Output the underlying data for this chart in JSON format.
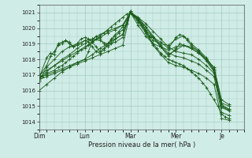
{
  "bg_color": "#d0ece6",
  "grid_color": "#a0ccc0",
  "line_color": "#1a5c1a",
  "xlabel": "Pression niveau de la mer( hPa )",
  "ylim": [
    1013.5,
    1021.5
  ],
  "yticks": [
    1014,
    1015,
    1016,
    1017,
    1018,
    1019,
    1020,
    1021
  ],
  "xlim": [
    0,
    216
  ],
  "day_ticks": [
    0,
    48,
    96,
    144,
    192
  ],
  "day_labels": [
    "Dim",
    "Lun",
    "Mar",
    "Mer",
    "Je"
  ],
  "lines": [
    [
      0,
      1016.8,
      4,
      1016.9,
      8,
      1017.1,
      16,
      1017.3,
      20,
      1017.5,
      24,
      1017.6,
      28,
      1017.8,
      32,
      1018.0,
      36,
      1018.2,
      40,
      1018.4,
      44,
      1018.6,
      48,
      1018.7,
      52,
      1018.9,
      56,
      1019.1,
      60,
      1019.3,
      64,
      1019.5,
      68,
      1019.7,
      72,
      1019.9,
      76,
      1020.1,
      80,
      1020.3,
      84,
      1020.5,
      88,
      1020.7,
      92,
      1020.9,
      96,
      1021.0,
      100,
      1020.8,
      104,
      1020.5,
      108,
      1020.2,
      112,
      1019.8,
      116,
      1019.4,
      120,
      1019.0,
      124,
      1018.7,
      128,
      1018.4,
      132,
      1018.2,
      136,
      1018.0,
      140,
      1017.9,
      144,
      1017.8,
      148,
      1017.7,
      152,
      1017.6,
      156,
      1017.4,
      160,
      1017.2,
      164,
      1017.0,
      168,
      1016.8,
      172,
      1016.5,
      176,
      1016.2,
      180,
      1015.8,
      184,
      1015.4,
      188,
      1015.0,
      192,
      1014.5,
      196,
      1014.3,
      200,
      1014.2
    ],
    [
      0,
      1016.7,
      8,
      1016.9,
      16,
      1017.1,
      24,
      1017.3,
      32,
      1017.5,
      40,
      1017.7,
      48,
      1017.9,
      56,
      1018.1,
      64,
      1018.3,
      72,
      1018.5,
      80,
      1018.7,
      88,
      1018.9,
      96,
      1021.0,
      104,
      1020.4,
      112,
      1019.7,
      120,
      1018.9,
      128,
      1018.3,
      136,
      1017.8,
      144,
      1017.6,
      152,
      1017.5,
      160,
      1017.3,
      168,
      1017.1,
      176,
      1016.8,
      184,
      1016.4,
      192,
      1014.2,
      200,
      1014.1
    ],
    [
      0,
      1016.8,
      8,
      1017.2,
      16,
      1017.6,
      24,
      1018.0,
      32,
      1018.3,
      40,
      1018.7,
      48,
      1019.0,
      56,
      1019.3,
      64,
      1019.6,
      72,
      1019.8,
      80,
      1020.0,
      88,
      1020.2,
      96,
      1021.0,
      104,
      1020.6,
      112,
      1020.1,
      120,
      1019.5,
      128,
      1018.9,
      136,
      1018.4,
      144,
      1018.2,
      152,
      1018.1,
      160,
      1017.9,
      168,
      1017.7,
      176,
      1017.3,
      184,
      1016.9,
      192,
      1014.6,
      200,
      1014.4
    ],
    [
      0,
      1016.6,
      8,
      1017.5,
      16,
      1018.0,
      24,
      1018.5,
      32,
      1018.8,
      40,
      1019.0,
      48,
      1019.2,
      56,
      1019.3,
      64,
      1019.2,
      72,
      1019.0,
      80,
      1019.1,
      88,
      1019.4,
      96,
      1021.0,
      104,
      1020.7,
      112,
      1020.1,
      120,
      1019.4,
      128,
      1018.8,
      136,
      1018.3,
      144,
      1018.6,
      152,
      1018.9,
      160,
      1018.8,
      168,
      1018.5,
      176,
      1018.0,
      184,
      1017.3,
      192,
      1015.1,
      200,
      1014.8
    ],
    [
      0,
      1017.0,
      8,
      1017.3,
      16,
      1017.6,
      24,
      1017.9,
      32,
      1018.2,
      40,
      1018.5,
      48,
      1018.8,
      56,
      1019.1,
      64,
      1019.4,
      72,
      1019.7,
      80,
      1019.9,
      88,
      1020.2,
      96,
      1021.0,
      104,
      1020.7,
      112,
      1020.3,
      120,
      1019.8,
      128,
      1019.3,
      136,
      1018.8,
      144,
      1018.5,
      152,
      1018.4,
      160,
      1018.3,
      168,
      1018.0,
      176,
      1017.6,
      184,
      1017.1,
      192,
      1014.9,
      200,
      1014.7
    ],
    [
      0,
      1016.0,
      8,
      1016.4,
      16,
      1016.8,
      24,
      1017.2,
      32,
      1017.5,
      40,
      1017.8,
      48,
      1018.0,
      56,
      1018.3,
      64,
      1018.7,
      72,
      1019.0,
      80,
      1019.3,
      88,
      1019.6,
      96,
      1021.0,
      104,
      1020.2,
      112,
      1019.5,
      120,
      1019.0,
      128,
      1018.8,
      136,
      1018.6,
      144,
      1018.8,
      152,
      1018.9,
      160,
      1018.7,
      168,
      1018.4,
      176,
      1018.0,
      184,
      1017.5,
      192,
      1015.4,
      200,
      1015.1
    ],
    [
      0,
      1016.9,
      8,
      1017.0,
      16,
      1017.2,
      24,
      1017.4,
      32,
      1017.6,
      40,
      1017.8,
      48,
      1018.0,
      52,
      1018.5,
      56,
      1019.2,
      60,
      1019.5,
      64,
      1019.3,
      68,
      1019.0,
      72,
      1018.8,
      76,
      1019.0,
      80,
      1019.3,
      88,
      1019.6,
      96,
      1021.1,
      104,
      1020.5,
      112,
      1019.8,
      116,
      1019.5,
      120,
      1019.2,
      128,
      1019.0,
      136,
      1018.9,
      144,
      1019.3,
      152,
      1019.5,
      156,
      1019.3,
      160,
      1019.0,
      168,
      1018.6,
      176,
      1018.1,
      184,
      1017.4,
      192,
      1015.2,
      200,
      1015.0
    ],
    [
      0,
      1016.8,
      8,
      1018.1,
      12,
      1018.4,
      16,
      1018.3,
      20,
      1019.0,
      24,
      1019.1,
      28,
      1019.2,
      32,
      1019.0,
      36,
      1018.8,
      40,
      1018.9,
      44,
      1019.0,
      48,
      1019.2,
      52,
      1019.1,
      56,
      1018.8,
      60,
      1018.5,
      64,
      1018.4,
      68,
      1018.6,
      72,
      1018.9,
      76,
      1019.2,
      80,
      1019.5,
      84,
      1019.7,
      88,
      1019.9,
      92,
      1020.3,
      96,
      1021.1,
      100,
      1020.8,
      104,
      1020.6,
      108,
      1020.3,
      112,
      1019.9,
      116,
      1019.5,
      120,
      1019.4,
      128,
      1019.1,
      136,
      1018.7,
      144,
      1019.4,
      148,
      1019.6,
      152,
      1019.5,
      156,
      1019.2,
      160,
      1018.9,
      168,
      1018.5,
      176,
      1018.0,
      184,
      1017.3,
      192,
      1015.0,
      200,
      1014.8
    ],
    [
      0,
      1016.9,
      8,
      1017.6,
      12,
      1018.2,
      16,
      1018.5,
      20,
      1018.9,
      24,
      1019.0,
      28,
      1019.2,
      32,
      1019.1,
      36,
      1018.8,
      40,
      1019.0,
      44,
      1019.3,
      48,
      1019.4,
      52,
      1019.3,
      56,
      1019.1,
      60,
      1018.8,
      64,
      1018.5,
      68,
      1018.7,
      72,
      1019.0,
      76,
      1019.3,
      80,
      1019.6,
      84,
      1019.8,
      88,
      1020.1,
      92,
      1020.5,
      96,
      1021.0,
      100,
      1020.8,
      104,
      1020.6,
      108,
      1020.2,
      112,
      1019.9,
      120,
      1019.4,
      128,
      1018.8,
      136,
      1018.2,
      144,
      1018.7,
      148,
      1019.0,
      152,
      1018.9,
      160,
      1018.7,
      168,
      1018.4,
      176,
      1017.9,
      184,
      1017.2,
      192,
      1015.0,
      200,
      1014.7
    ]
  ]
}
